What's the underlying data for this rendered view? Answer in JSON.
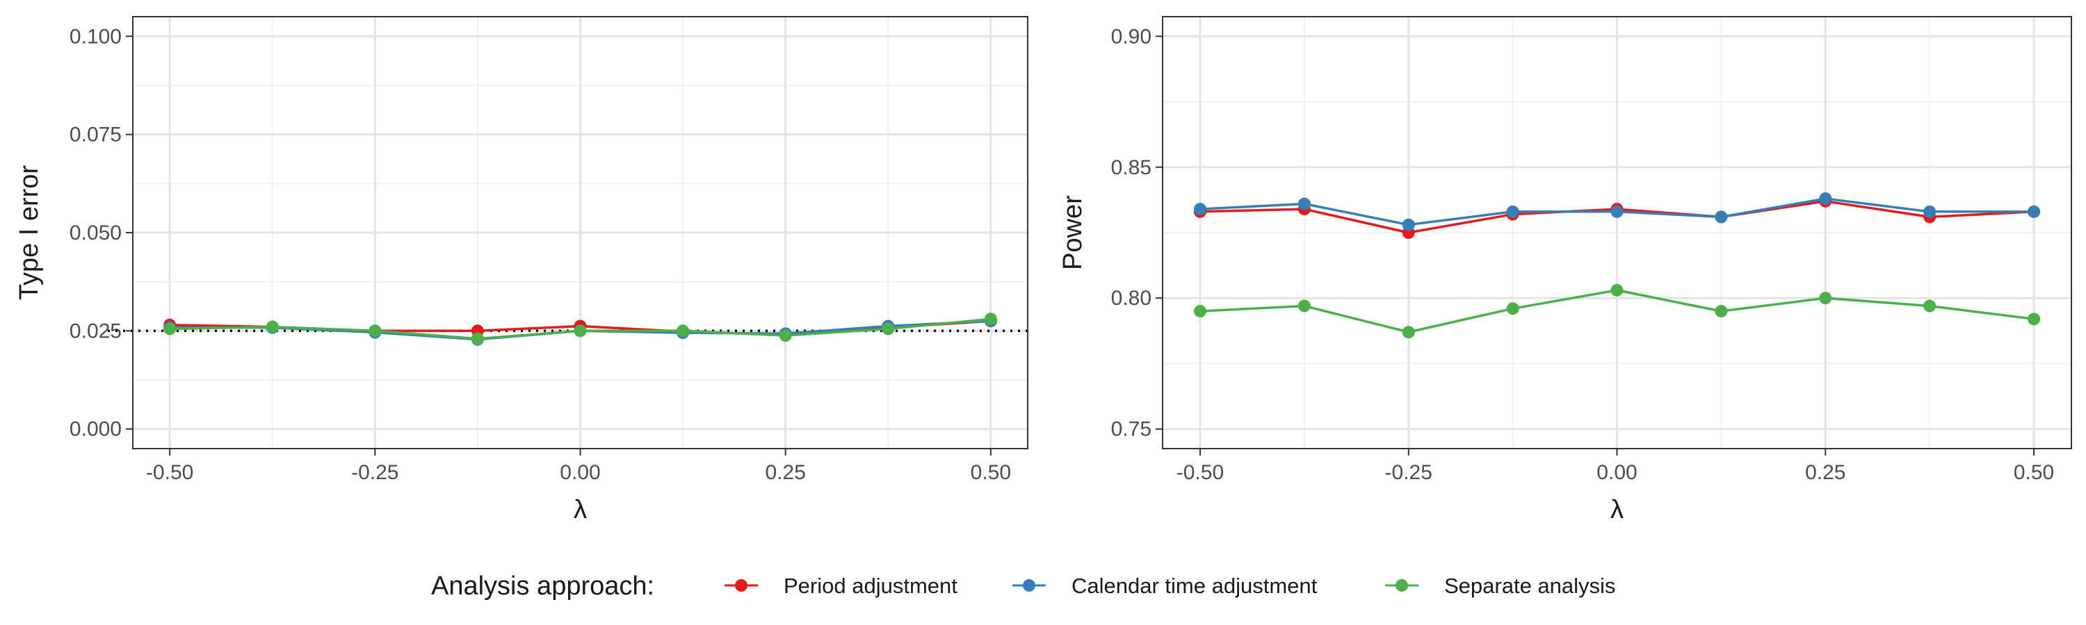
{
  "chart_data": [
    {
      "type": "line",
      "title": "",
      "xlabel": "λ",
      "ylabel": "Type I error",
      "xlim": [
        -0.5,
        0.5
      ],
      "ylim": [
        0.0,
        0.1
      ],
      "x_ticks": [
        "-0.50",
        "-0.25",
        "0.00",
        "0.25",
        "0.50"
      ],
      "y_ticks": [
        "0.000",
        "0.025",
        "0.050",
        "0.075",
        "0.100"
      ],
      "grid": true,
      "reference_line": {
        "y": 0.025,
        "style": "dotted",
        "color": "#000000"
      },
      "x": [
        -0.5,
        -0.375,
        -0.25,
        -0.125,
        0.0,
        0.125,
        0.25,
        0.375,
        0.5
      ],
      "series": [
        {
          "name": "Period adjustment",
          "color": "#e41a1c",
          "values": [
            0.0265,
            0.026,
            0.025,
            0.025,
            0.0262,
            0.0248,
            0.024,
            0.0258,
            0.0275
          ]
        },
        {
          "name": "Calendar time adjustment",
          "color": "#377eb8",
          "values": [
            0.0258,
            0.0258,
            0.0246,
            0.0228,
            0.025,
            0.0245,
            0.0243,
            0.0262,
            0.0275
          ]
        },
        {
          "name": "Separate analysis",
          "color": "#4daf4a",
          "values": [
            0.0255,
            0.026,
            0.025,
            0.023,
            0.025,
            0.025,
            0.0238,
            0.0255,
            0.028
          ]
        }
      ]
    },
    {
      "type": "line",
      "title": "",
      "xlabel": "λ",
      "ylabel": "Power",
      "xlim": [
        -0.5,
        0.5
      ],
      "ylim": [
        0.75,
        0.9
      ],
      "x_ticks": [
        "-0.50",
        "-0.25",
        "0.00",
        "0.25",
        "0.50"
      ],
      "y_ticks": [
        "0.75",
        "0.80",
        "0.85",
        "0.90"
      ],
      "grid": true,
      "x": [
        -0.5,
        -0.375,
        -0.25,
        -0.125,
        0.0,
        0.125,
        0.25,
        0.375,
        0.5
      ],
      "series": [
        {
          "name": "Period adjustment",
          "color": "#e41a1c",
          "values": [
            0.833,
            0.834,
            0.825,
            0.832,
            0.834,
            0.831,
            0.837,
            0.831,
            0.833
          ]
        },
        {
          "name": "Calendar time adjustment",
          "color": "#377eb8",
          "values": [
            0.834,
            0.836,
            0.828,
            0.833,
            0.833,
            0.831,
            0.838,
            0.833,
            0.833
          ]
        },
        {
          "name": "Separate analysis",
          "color": "#4daf4a",
          "values": [
            0.795,
            0.797,
            0.787,
            0.796,
            0.803,
            0.795,
            0.8,
            0.797,
            0.792
          ]
        }
      ]
    }
  ],
  "legend": {
    "title": "Analysis approach:",
    "placement": "bottom",
    "items": [
      {
        "label": "Period adjustment",
        "color": "#e41a1c"
      },
      {
        "label": "Calendar time adjustment",
        "color": "#377eb8"
      },
      {
        "label": "Separate analysis",
        "color": "#4daf4a"
      }
    ]
  }
}
